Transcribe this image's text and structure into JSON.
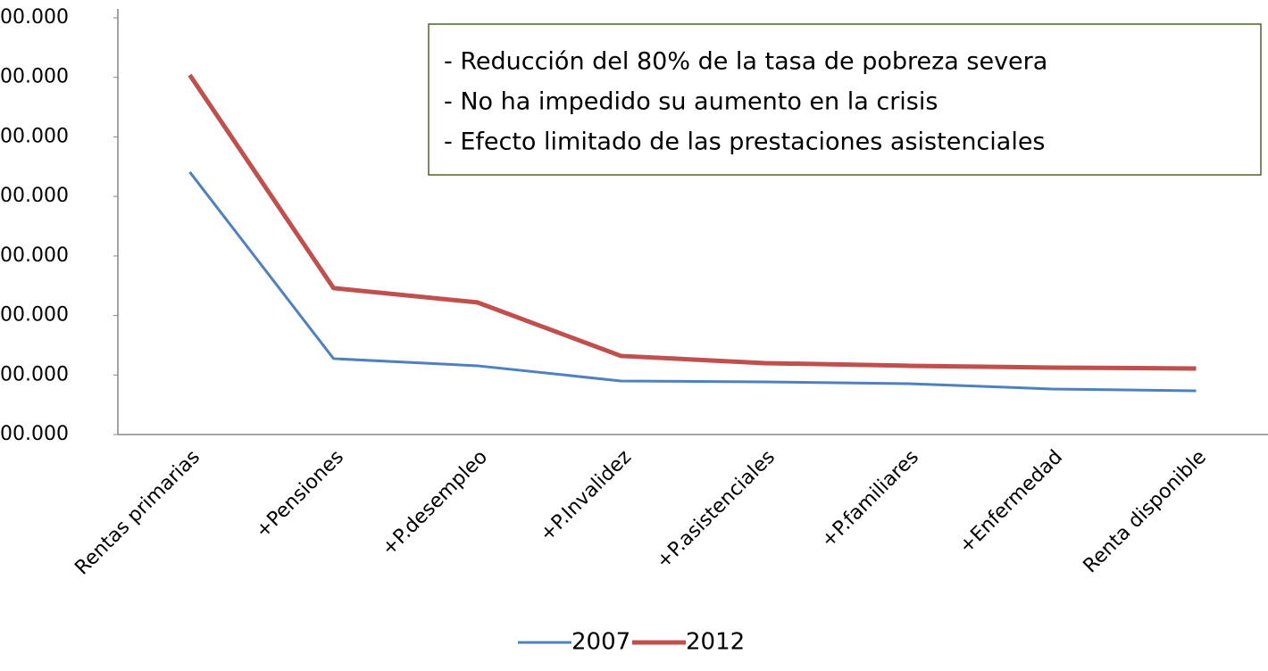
{
  "chart_data": {
    "type": "line",
    "categories": [
      "Rentas primarias",
      "+Pensiones",
      "+P.desempleo",
      "+P.Invalidez",
      "+P.asistenciales",
      "+P.familiares",
      "+Enfermedad",
      "Renta disponible"
    ],
    "series": [
      {
        "name": "2007",
        "color": "#4f81bd",
        "values": [
          441000,
          127500,
          115500,
          90000,
          88500,
          85500,
          76500,
          73500
        ]
      },
      {
        "name": "2012",
        "color": "#c0504d",
        "values": [
          604000,
          246000,
          222000,
          132000,
          120000,
          115500,
          112500,
          111000
        ]
      }
    ],
    "ylim": [
      0,
      700000
    ],
    "yticks": [
      {
        "value": 0,
        "label": "00.000"
      },
      {
        "value": 100000,
        "label": "00.000"
      },
      {
        "value": 200000,
        "label": "00.000"
      },
      {
        "value": 300000,
        "label": "00.000"
      },
      {
        "value": 400000,
        "label": "00.000"
      },
      {
        "value": 500000,
        "label": "00.000"
      },
      {
        "value": 600000,
        "label": "00.000"
      },
      {
        "value": 700000,
        "label": "00.000"
      }
    ],
    "annotations": [
      "- Reducción del 80% de la tasa de pobreza severa",
      "- No ha impedido su aumento en la crisis",
      "- Efecto limitado de las prestaciones asistenciales"
    ],
    "grid": false,
    "legend": "bottom"
  }
}
